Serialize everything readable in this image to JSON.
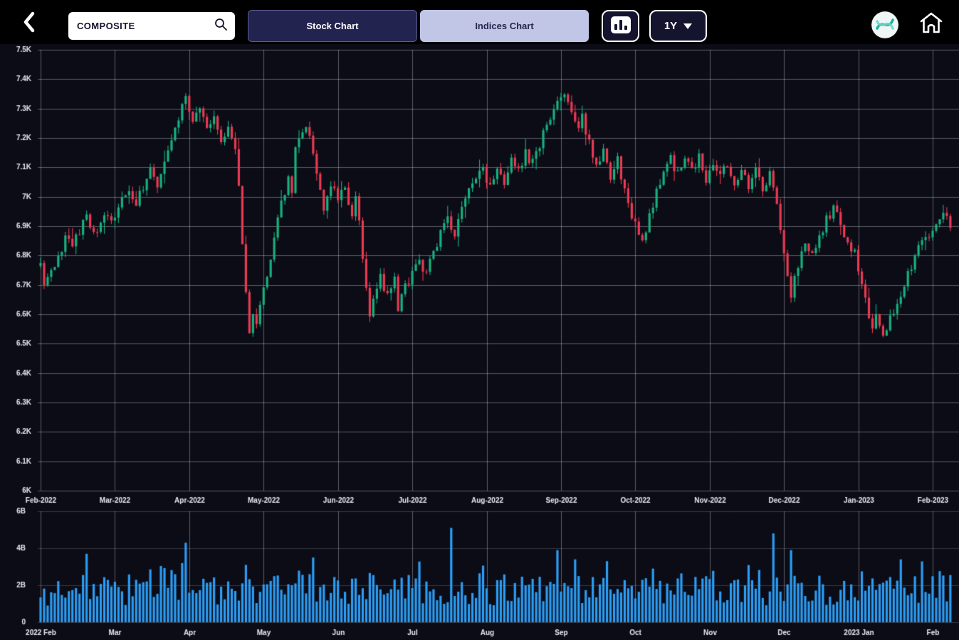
{
  "header": {
    "back_button": {
      "icon": "chevron-left"
    },
    "search": {
      "value": "COMPOSITE",
      "icon": "magnifier"
    },
    "tabs": [
      {
        "label": "Stock Chart",
        "active": false
      },
      {
        "label": "Indices Chart",
        "active": true
      }
    ],
    "chart_style_button": {
      "icon": "bar-chart"
    },
    "range_dropdown": {
      "value": "1Y",
      "icon": "caret-down"
    },
    "logo": {
      "icon": "idx-logo"
    },
    "home_button": {
      "icon": "home"
    }
  },
  "colors": {
    "header_bg": "#000000",
    "panel_bg": "#0c0c17",
    "grid": "rgba(255,255,255,0.33)",
    "grid_faint": "rgba(255,255,255,0.18)",
    "axis_text": "#e6e9f2",
    "candle_up": "#17b17e",
    "candle_down": "#e93a52",
    "volume_bar": "#2b9df4",
    "tab_active_bg": "#c2c6e6",
    "tab_active_text": "#26264f",
    "tab_inactive_bg": "#232350"
  },
  "chart_data": [
    {
      "type": "candlestick",
      "title": "COMPOSITE - 1Y daily candlesticks (price in thousands)",
      "ylabel": "",
      "xlabel": "",
      "grid": true,
      "ylim": [
        6.0,
        7.5
      ],
      "y_ticks": [
        "7.5K",
        "7.4K",
        "7.3K",
        "7.2K",
        "7.1K",
        "7K",
        "6.9K",
        "6.8K",
        "6.7K",
        "6.6K",
        "6.5K",
        "6.4K",
        "6.3K",
        "6.2K",
        "6.1K",
        "6K"
      ],
      "x_ticks": [
        "Feb-2022",
        "Mar-2022",
        "Apr-2022",
        "May-2022",
        "Jun-2022",
        "Jul-2022",
        "Aug-2022",
        "Sep-2022",
        "Oct-2022",
        "Nov-2022",
        "Dec-2022",
        "Jan-2023",
        "Feb-2023"
      ],
      "days": 258,
      "days_per_month": 21,
      "candle_noise": 0.02,
      "wick_noise": 0.02,
      "seed": 20220214,
      "close_anchors": [
        [
          0,
          6.76
        ],
        [
          1,
          6.7
        ],
        [
          3,
          6.74
        ],
        [
          5,
          6.8
        ],
        [
          7,
          6.86
        ],
        [
          9,
          6.82
        ],
        [
          11,
          6.89
        ],
        [
          13,
          6.93
        ],
        [
          15,
          6.87
        ],
        [
          17,
          6.91
        ],
        [
          19,
          6.95
        ],
        [
          21,
          6.92
        ],
        [
          23,
          6.98
        ],
        [
          25,
          7.03
        ],
        [
          27,
          6.97
        ],
        [
          29,
          7.04
        ],
        [
          31,
          7.09
        ],
        [
          33,
          7.04
        ],
        [
          35,
          7.12
        ],
        [
          37,
          7.18
        ],
        [
          39,
          7.26
        ],
        [
          41,
          7.34
        ],
        [
          43,
          7.26
        ],
        [
          45,
          7.31
        ],
        [
          47,
          7.22
        ],
        [
          49,
          7.28
        ],
        [
          51,
          7.19
        ],
        [
          53,
          7.25
        ],
        [
          55,
          7.17
        ],
        [
          56,
          7.02
        ],
        [
          57,
          6.84
        ],
        [
          58,
          6.66
        ],
        [
          59,
          6.54
        ],
        [
          60,
          6.62
        ],
        [
          61,
          6.56
        ],
        [
          63,
          6.68
        ],
        [
          65,
          6.8
        ],
        [
          67,
          6.92
        ],
        [
          69,
          7.02
        ],
        [
          70,
          7.08
        ],
        [
          71,
          7.02
        ],
        [
          72,
          7.15
        ],
        [
          73,
          7.2
        ],
        [
          75,
          7.25
        ],
        [
          77,
          7.13
        ],
        [
          79,
          7.01
        ],
        [
          80,
          6.96
        ],
        [
          82,
          7.05
        ],
        [
          84,
          6.99
        ],
        [
          86,
          7.02
        ],
        [
          88,
          6.95
        ],
        [
          89,
          6.99
        ],
        [
          90,
          6.9
        ],
        [
          91,
          6.8
        ],
        [
          92,
          6.69
        ],
        [
          93,
          6.58
        ],
        [
          94,
          6.67
        ],
        [
          96,
          6.73
        ],
        [
          98,
          6.66
        ],
        [
          100,
          6.73
        ],
        [
          101,
          6.61
        ],
        [
          103,
          6.69
        ],
        [
          105,
          6.73
        ],
        [
          107,
          6.79
        ],
        [
          109,
          6.73
        ],
        [
          111,
          6.81
        ],
        [
          113,
          6.87
        ],
        [
          115,
          6.92
        ],
        [
          117,
          6.88
        ],
        [
          119,
          6.95
        ],
        [
          121,
          7.01
        ],
        [
          123,
          7.06
        ],
        [
          125,
          7.1
        ],
        [
          127,
          7.03
        ],
        [
          129,
          7.09
        ],
        [
          131,
          7.05
        ],
        [
          133,
          7.12
        ],
        [
          135,
          7.08
        ],
        [
          137,
          7.15
        ],
        [
          139,
          7.11
        ],
        [
          141,
          7.18
        ],
        [
          143,
          7.24
        ],
        [
          145,
          7.29
        ],
        [
          147,
          7.33
        ],
        [
          148,
          7.36
        ],
        [
          150,
          7.28
        ],
        [
          152,
          7.22
        ],
        [
          153,
          7.28
        ],
        [
          155,
          7.18
        ],
        [
          157,
          7.11
        ],
        [
          159,
          7.17
        ],
        [
          161,
          7.07
        ],
        [
          163,
          7.13
        ],
        [
          165,
          7.01
        ],
        [
          167,
          6.93
        ],
        [
          169,
          6.87
        ],
        [
          170,
          6.84
        ],
        [
          172,
          6.93
        ],
        [
          174,
          7.01
        ],
        [
          176,
          7.09
        ],
        [
          178,
          7.13
        ],
        [
          180,
          7.07
        ],
        [
          182,
          7.13
        ],
        [
          184,
          7.08
        ],
        [
          186,
          7.13
        ],
        [
          188,
          7.06
        ],
        [
          190,
          7.12
        ],
        [
          192,
          7.07
        ],
        [
          194,
          7.12
        ],
        [
          196,
          7.05
        ],
        [
          198,
          7.1
        ],
        [
          200,
          7.04
        ],
        [
          202,
          7.09
        ],
        [
          204,
          7.03
        ],
        [
          206,
          7.07
        ],
        [
          208,
          6.98
        ],
        [
          209,
          6.9
        ],
        [
          210,
          6.82
        ],
        [
          211,
          6.74
        ],
        [
          212,
          6.67
        ],
        [
          214,
          6.76
        ],
        [
          216,
          6.84
        ],
        [
          218,
          6.8
        ],
        [
          220,
          6.86
        ],
        [
          222,
          6.92
        ],
        [
          224,
          6.96
        ],
        [
          226,
          6.9
        ],
        [
          228,
          6.85
        ],
        [
          230,
          6.8
        ],
        [
          231,
          6.76
        ],
        [
          232,
          6.7
        ],
        [
          233,
          6.64
        ],
        [
          234,
          6.6
        ],
        [
          235,
          6.56
        ],
        [
          236,
          6.6
        ],
        [
          237,
          6.55
        ],
        [
          238,
          6.52
        ],
        [
          240,
          6.58
        ],
        [
          242,
          6.64
        ],
        [
          244,
          6.7
        ],
        [
          246,
          6.76
        ],
        [
          248,
          6.82
        ],
        [
          250,
          6.86
        ],
        [
          252,
          6.9
        ],
        [
          254,
          6.93
        ],
        [
          255,
          6.96
        ],
        [
          257,
          6.88
        ]
      ]
    },
    {
      "type": "bar",
      "title": "Trading volume (billions of shares)",
      "ylabel": "",
      "xlabel": "",
      "grid": true,
      "ylim": [
        0,
        6
      ],
      "y_ticks": [
        "6B",
        "4B",
        "2B",
        "0"
      ],
      "x_ticks": [
        "2022 Feb",
        "Mar",
        "Apr",
        "May",
        "Jun",
        "Jul",
        "Aug",
        "Sep",
        "Oct",
        "Nov",
        "Dec",
        "2023 Jan",
        "Feb"
      ],
      "base_range": [
        0.9,
        2.6
      ],
      "boost_chance": 0.12,
      "boost_amount": 0.7,
      "seed": 99,
      "spikes": [
        [
          13,
          3.7
        ],
        [
          40,
          3.2
        ],
        [
          41,
          4.3
        ],
        [
          58,
          3.1
        ],
        [
          77,
          3.5
        ],
        [
          116,
          5.1
        ],
        [
          146,
          3.9
        ],
        [
          151,
          3.4
        ],
        [
          160,
          3.3
        ],
        [
          207,
          4.8
        ],
        [
          212,
          3.9
        ],
        [
          243,
          3.4
        ]
      ]
    }
  ]
}
